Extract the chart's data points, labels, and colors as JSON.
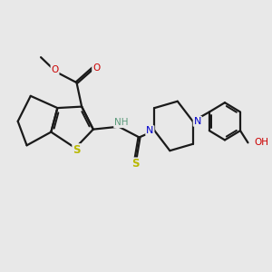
{
  "bg": "#e8e8e8",
  "bond_color": "#1a1a1a",
  "lw": 1.6,
  "fs": 7.5,
  "atom_colors": {
    "S": "#b8b800",
    "N": "#0000cc",
    "O": "#cc0000",
    "H_N": "#5a9a7a",
    "H_O": "#5a9a7a"
  },
  "xlim": [
    0,
    10
  ],
  "ylim": [
    0,
    10
  ]
}
